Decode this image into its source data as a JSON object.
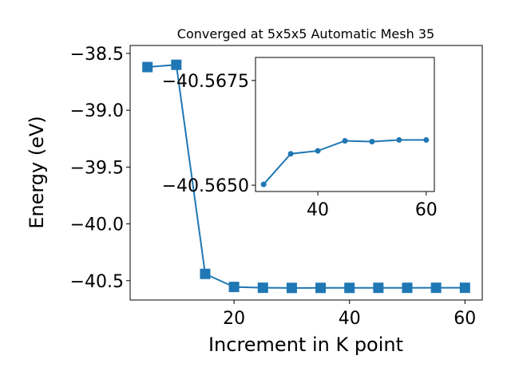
{
  "chart_data": [
    {
      "type": "line",
      "title": "Converged at 5x5x5 Automatic Mesh 35",
      "xlabel": "Increment in K point",
      "ylabel": "Energy (eV)",
      "xlim": [
        2,
        63
      ],
      "ylim": [
        -40.67,
        -38.43
      ],
      "x_ticks": [
        20,
        40,
        60
      ],
      "y_ticks": [
        -38.5,
        -39.0,
        -39.5,
        -40.0,
        -40.5
      ],
      "x_tick_labels": [
        "20",
        "40",
        "60"
      ],
      "y_tick_labels": [
        "−38.5",
        "−39.0",
        "−39.5",
        "−40.0",
        "−40.5"
      ],
      "grid": false,
      "color": "#1f77b4",
      "marker": "square",
      "x": [
        5,
        10,
        15,
        20,
        25,
        30,
        35,
        40,
        45,
        50,
        55,
        60
      ],
      "y": [
        -38.62,
        -38.6,
        -40.44,
        -40.555,
        -40.562,
        -40.5635,
        -40.5633,
        -40.5632,
        -40.5625,
        -40.5626,
        -40.5624,
        -40.5624
      ]
    },
    {
      "type": "line",
      "title": "",
      "xlabel": "",
      "ylabel": "",
      "xlim": [
        28.5,
        61.5
      ],
      "ylim": [
        -40.56485,
        -40.56805
      ],
      "x_ticks": [
        40,
        60
      ],
      "y_ticks": [
        -40.5675,
        -40.565
      ],
      "x_tick_labels": [
        "40",
        "60"
      ],
      "y_tick_labels": [
        "−40.5675",
        "−40.5650"
      ],
      "grid": false,
      "color": "#1f77b4",
      "marker": "circle",
      "x": [
        30,
        35,
        40,
        45,
        50,
        55,
        60
      ],
      "y": [
        -40.56502,
        -40.56575,
        -40.56582,
        -40.56606,
        -40.56604,
        -40.56608,
        -40.56608
      ]
    }
  ]
}
